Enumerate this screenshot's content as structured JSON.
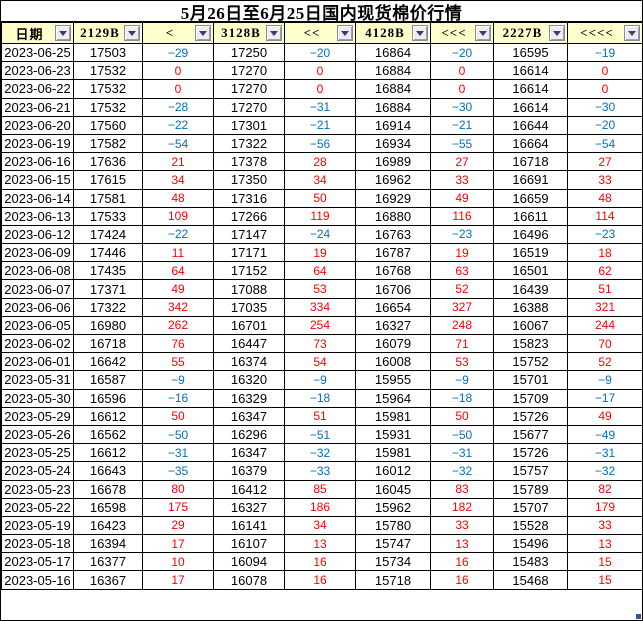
{
  "title": "5月26日至6月25日国内现货棉价行情",
  "colors": {
    "header_bg": "#FFFFCC",
    "positive_change": "#FF0000",
    "negative_change": "#0070C0",
    "grid": "#000000",
    "filter_button_bg": "#ECECF4",
    "filter_arrow": "#3E3E5C",
    "corner_marker": "#3A53A4"
  },
  "icons": {
    "filter_dropdown": "▼"
  },
  "table": {
    "columns": [
      {
        "label": "日期"
      },
      {
        "label": "2129B"
      },
      {
        "label": "<"
      },
      {
        "label": "3128B"
      },
      {
        "label": "<<"
      },
      {
        "label": "4128B"
      },
      {
        "label": "<<<"
      },
      {
        "label": "2227B"
      },
      {
        "label": "<<<<"
      }
    ],
    "rows": [
      {
        "date": "2023-06-25",
        "values": [
          17503,
          -29,
          17250,
          -20,
          16864,
          -20,
          16595,
          -19
        ]
      },
      {
        "date": "2023-06-23",
        "values": [
          17532,
          0,
          17270,
          0,
          16884,
          0,
          16614,
          0
        ]
      },
      {
        "date": "2023-06-22",
        "values": [
          17532,
          0,
          17270,
          0,
          16884,
          0,
          16614,
          0
        ]
      },
      {
        "date": "2023-06-21",
        "values": [
          17532,
          -28,
          17270,
          -31,
          16884,
          -30,
          16614,
          -30
        ]
      },
      {
        "date": "2023-06-20",
        "values": [
          17560,
          -22,
          17301,
          -21,
          16914,
          -21,
          16644,
          -20
        ]
      },
      {
        "date": "2023-06-19",
        "values": [
          17582,
          -54,
          17322,
          -56,
          16934,
          -55,
          16664,
          -54
        ]
      },
      {
        "date": "2023-06-16",
        "values": [
          17636,
          21,
          17378,
          28,
          16989,
          27,
          16718,
          27
        ]
      },
      {
        "date": "2023-06-15",
        "values": [
          17615,
          34,
          17350,
          34,
          16962,
          33,
          16691,
          33
        ]
      },
      {
        "date": "2023-06-14",
        "values": [
          17581,
          48,
          17316,
          50,
          16929,
          49,
          16659,
          48
        ]
      },
      {
        "date": "2023-06-13",
        "values": [
          17533,
          109,
          17266,
          119,
          16880,
          116,
          16611,
          114
        ]
      },
      {
        "date": "2023-06-12",
        "values": [
          17424,
          -22,
          17147,
          -24,
          16763,
          -23,
          16496,
          -23
        ]
      },
      {
        "date": "2023-06-09",
        "values": [
          17446,
          11,
          17171,
          19,
          16787,
          19,
          16519,
          18
        ]
      },
      {
        "date": "2023-06-08",
        "values": [
          17435,
          64,
          17152,
          64,
          16768,
          63,
          16501,
          62
        ]
      },
      {
        "date": "2023-06-07",
        "values": [
          17371,
          49,
          17088,
          53,
          16706,
          52,
          16439,
          51
        ]
      },
      {
        "date": "2023-06-06",
        "values": [
          17322,
          342,
          17035,
          334,
          16654,
          327,
          16388,
          321
        ]
      },
      {
        "date": "2023-06-05",
        "values": [
          16980,
          262,
          16701,
          254,
          16327,
          248,
          16067,
          244
        ]
      },
      {
        "date": "2023-06-02",
        "values": [
          16718,
          76,
          16447,
          73,
          16079,
          71,
          15823,
          70
        ]
      },
      {
        "date": "2023-06-01",
        "values": [
          16642,
          55,
          16374,
          54,
          16008,
          53,
          15752,
          52
        ]
      },
      {
        "date": "2023-05-31",
        "values": [
          16587,
          -9,
          16320,
          -9,
          15955,
          -9,
          15701,
          -9
        ]
      },
      {
        "date": "2023-05-30",
        "values": [
          16596,
          -16,
          16329,
          -18,
          15964,
          -18,
          15709,
          -17
        ]
      },
      {
        "date": "2023-05-29",
        "values": [
          16612,
          50,
          16347,
          51,
          15981,
          50,
          15726,
          49
        ]
      },
      {
        "date": "2023-05-26",
        "values": [
          16562,
          -50,
          16296,
          -51,
          15931,
          -50,
          15677,
          -49
        ]
      },
      {
        "date": "2023-05-25",
        "values": [
          16612,
          -31,
          16347,
          -32,
          15981,
          -31,
          15726,
          -31
        ]
      },
      {
        "date": "2023-05-24",
        "values": [
          16643,
          -35,
          16379,
          -33,
          16012,
          -32,
          15757,
          -32
        ]
      },
      {
        "date": "2023-05-23",
        "values": [
          16678,
          80,
          16412,
          85,
          16045,
          83,
          15789,
          82
        ]
      },
      {
        "date": "2023-05-22",
        "values": [
          16598,
          175,
          16327,
          186,
          15962,
          182,
          15707,
          179
        ]
      },
      {
        "date": "2023-05-19",
        "values": [
          16423,
          29,
          16141,
          34,
          15780,
          33,
          15528,
          33
        ]
      },
      {
        "date": "2023-05-18",
        "values": [
          16394,
          17,
          16107,
          13,
          15747,
          13,
          15496,
          13
        ]
      },
      {
        "date": "2023-05-17",
        "values": [
          16377,
          10,
          16094,
          16,
          15734,
          16,
          15483,
          15
        ]
      },
      {
        "date": "2023-05-16",
        "values": [
          16367,
          17,
          16078,
          16,
          15718,
          16,
          15468,
          15
        ]
      }
    ]
  }
}
